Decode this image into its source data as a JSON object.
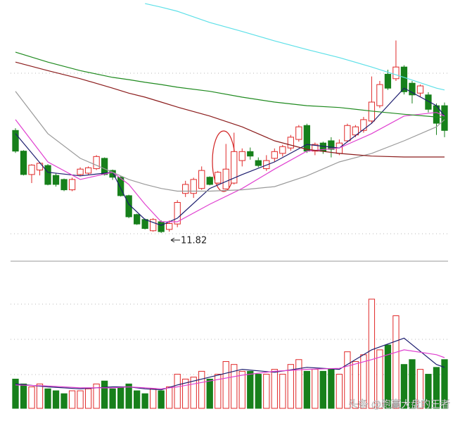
{
  "chart_data": {
    "type": "candlestick",
    "open": [
      14.1,
      13.64,
      13.12,
      13.22,
      13.32,
      13.1,
      13.01,
      12.78,
      13.12,
      13.15,
      13.25,
      13.48,
      13.21,
      13.06,
      12.65,
      12.23,
      12.12,
      11.87,
      12.07,
      11.9,
      12.02,
      12.7,
      12.7,
      12.81,
      13.06,
      12.93,
      12.8,
      12.93,
      13.43,
      13.63,
      13.43,
      13.25,
      13.48,
      13.59,
      13.71,
      13.9,
      14.21,
      13.64,
      13.82,
      13.87,
      13.59,
      13.87,
      14.0,
      14.1,
      14.31,
      14.65,
      15.35,
      15.25,
      15.51,
      15.15,
      14.93,
      14.89,
      14.65,
      14.65
    ],
    "high": [
      14.15,
      13.66,
      13.35,
      13.4,
      13.35,
      13.14,
      13.03,
      13.05,
      13.28,
      13.3,
      13.55,
      13.5,
      13.23,
      13.08,
      12.67,
      12.25,
      12.14,
      12.15,
      12.1,
      12.1,
      12.55,
      12.98,
      13.05,
      13.3,
      13.08,
      13.2,
      13.8,
      14.05,
      13.7,
      13.72,
      13.5,
      13.55,
      13.7,
      13.78,
      14.0,
      14.22,
      14.25,
      13.83,
      13.85,
      13.95,
      13.9,
      14.25,
      14.22,
      14.4,
      15.3,
      15.2,
      15.45,
      16.1,
      15.55,
      15.2,
      15.12,
      14.95,
      14.7,
      14.72
    ],
    "low": [
      13.6,
      13.1,
      12.93,
      13.1,
      12.88,
      12.85,
      12.75,
      12.75,
      13.08,
      13.12,
      13.22,
      13.1,
      13.0,
      12.63,
      12.15,
      12.0,
      11.9,
      11.85,
      11.82,
      11.85,
      11.95,
      12.62,
      12.6,
      12.78,
      12.88,
      12.9,
      12.78,
      12.9,
      13.3,
      13.45,
      13.28,
      13.2,
      13.4,
      13.52,
      13.65,
      13.85,
      13.6,
      13.55,
      13.58,
      13.5,
      13.55,
      13.85,
      13.95,
      14.05,
      14.25,
      14.6,
      15.0,
      15.2,
      14.9,
      14.7,
      14.85,
      14.5,
      14.0,
      13.95
    ],
    "close": [
      13.64,
      13.12,
      13.33,
      13.37,
      12.9,
      12.9,
      12.78,
      13.01,
      13.24,
      13.27,
      13.52,
      13.12,
      13.06,
      12.65,
      12.18,
      12.02,
      11.92,
      12.12,
      11.85,
      12.03,
      12.5,
      12.9,
      13.01,
      13.21,
      12.9,
      13.17,
      13.24,
      13.63,
      13.63,
      13.53,
      13.32,
      13.43,
      13.63,
      13.74,
      13.95,
      14.18,
      13.64,
      13.79,
      13.64,
      13.68,
      13.82,
      14.21,
      14.18,
      14.34,
      14.73,
      15.12,
      15.04,
      15.51,
      14.96,
      14.89,
      15.09,
      14.57,
      14.26,
      14.1
    ],
    "volume": [
      30,
      25,
      22,
      25,
      20,
      18,
      15,
      18,
      18,
      20,
      25,
      28,
      20,
      22,
      25,
      18,
      15,
      20,
      18,
      22,
      35,
      30,
      32,
      38,
      30,
      35,
      48,
      45,
      38,
      38,
      35,
      35,
      40,
      35,
      45,
      50,
      38,
      40,
      38,
      40,
      35,
      58,
      48,
      55,
      112,
      60,
      65,
      95,
      45,
      50,
      40,
      35,
      42,
      50
    ],
    "ylim": [
      11.6,
      17.0
    ],
    "vylim": [
      0,
      130
    ],
    "up_color": "#e02828",
    "down_color": "#17801b",
    "lines": [
      {
        "color": "#1c1c6e",
        "x": [
          0,
          4,
          8,
          12,
          14,
          16,
          18,
          20,
          24,
          28,
          32,
          36,
          40,
          44,
          48,
          52,
          53
        ],
        "values": [
          14.03,
          13.17,
          13.09,
          13.17,
          12.46,
          12.12,
          11.99,
          12.15,
          12.81,
          13.12,
          13.4,
          13.79,
          13.71,
          14.26,
          15.04,
          14.65,
          14.42
        ]
      },
      {
        "color": "#e040d0",
        "x": [
          0,
          4,
          8,
          12,
          14,
          16,
          18,
          20,
          24,
          28,
          32,
          36,
          40,
          44,
          48,
          52,
          53
        ],
        "values": [
          14.34,
          13.4,
          13.01,
          13.17,
          12.9,
          12.46,
          12.07,
          12.07,
          12.46,
          12.81,
          13.24,
          13.64,
          13.71,
          14.03,
          14.42,
          14.5,
          14.42
        ]
      },
      {
        "color": "#9a9a9a",
        "x": [
          0,
          4,
          8,
          12,
          14,
          16,
          18,
          20,
          24,
          28,
          32,
          36,
          40,
          44,
          48,
          52,
          53
        ],
        "values": [
          14.97,
          14.03,
          13.48,
          13.17,
          13.01,
          12.9,
          12.81,
          12.75,
          12.75,
          12.78,
          12.85,
          13.09,
          13.4,
          13.59,
          13.87,
          14.18,
          14.34
        ]
      },
      {
        "color": "#8b1c1c",
        "x": [
          0,
          4,
          8,
          12,
          14,
          16,
          18,
          20,
          24,
          28,
          32,
          36,
          40,
          44,
          48,
          52,
          53
        ],
        "values": [
          15.62,
          15.43,
          15.25,
          15.04,
          14.93,
          14.84,
          14.73,
          14.62,
          14.42,
          14.18,
          13.87,
          13.68,
          13.59,
          13.53,
          13.51,
          13.51,
          13.51
        ]
      },
      {
        "color": "#1f8a1f",
        "x": [
          0,
          4,
          8,
          12,
          14,
          16,
          18,
          20,
          24,
          28,
          32,
          36,
          40,
          44,
          48,
          52,
          53
        ],
        "values": [
          15.84,
          15.62,
          15.43,
          15.28,
          15.23,
          15.17,
          15.12,
          15.06,
          14.97,
          14.84,
          14.73,
          14.65,
          14.61,
          14.53,
          14.46,
          14.4,
          14.39
        ]
      },
      {
        "color": "#5ee0e8",
        "x": [
          0,
          4,
          8,
          12,
          14,
          16,
          18,
          20,
          24,
          28,
          32,
          36,
          40,
          44,
          48,
          52,
          53
        ],
        "values": [
          null,
          null,
          null,
          null,
          null,
          16.92,
          16.84,
          16.75,
          16.5,
          16.3,
          16.09,
          15.9,
          15.72,
          15.51,
          15.28,
          15.04,
          15.0
        ]
      }
    ],
    "volume_lines": [
      {
        "color": "#1c1c6e",
        "x": [
          0,
          4,
          8,
          12,
          14,
          16,
          18,
          20,
          24,
          28,
          32,
          36,
          40,
          44,
          48,
          52,
          53
        ],
        "values": [
          25,
          22,
          20,
          22,
          22,
          20,
          19,
          24,
          32,
          40,
          37,
          42,
          40,
          60,
          72,
          45,
          42
        ]
      },
      {
        "color": "#e040d0",
        "x": [
          0,
          4,
          8,
          12,
          14,
          16,
          18,
          20,
          24,
          28,
          32,
          36,
          40,
          44,
          48,
          52,
          53
        ],
        "values": [
          24,
          23,
          21,
          21,
          22,
          21,
          20,
          22,
          28,
          34,
          38,
          40,
          41,
          50,
          60,
          55,
          52
        ]
      }
    ],
    "annotation": "11.82",
    "watermark": "头条 @跑赢大盘的王者"
  }
}
